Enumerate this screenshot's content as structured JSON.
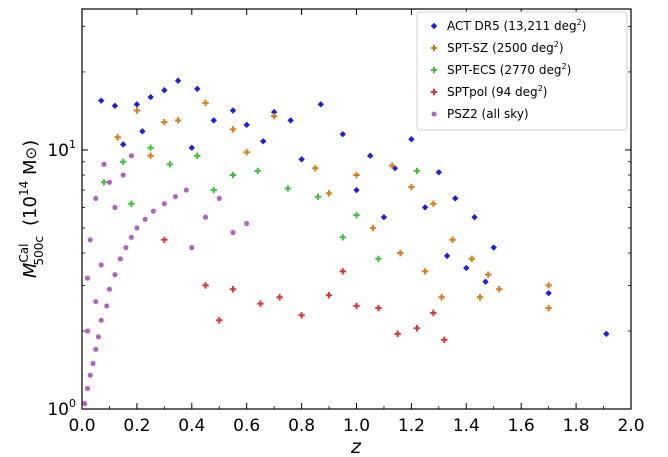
{
  "chart_data": {
    "type": "scatter",
    "xlabel": "z",
    "ylabel": {
      "symbol": "M",
      "superscript": "Cal",
      "subscript": "500c",
      "unit": "(10",
      "unit_exp": "14",
      "unit_tail": " M",
      "unit_close": ")"
    },
    "xlim": [
      0.0,
      2.0
    ],
    "ylim": [
      1.0,
      35.0
    ],
    "yscale": "log",
    "grid": false,
    "legend_position": "top-right",
    "x_ticks": [
      "0.0",
      "0.2",
      "0.4",
      "0.6",
      "0.8",
      "1.0",
      "1.2",
      "1.4",
      "1.6",
      "1.8",
      "2.0"
    ],
    "y_ticks": [
      {
        "value": 1,
        "base": "10",
        "exp": "0"
      },
      {
        "value": 10,
        "base": "10",
        "exp": "1"
      }
    ],
    "series": [
      {
        "name": "ACT DR5 (13,211 deg",
        "sup": "2",
        "tail": ")",
        "color": "#1f1fe0",
        "marker": "diamond",
        "points": [
          [
            0.07,
            15.5
          ],
          [
            0.12,
            14.8
          ],
          [
            0.2,
            15.0
          ],
          [
            0.25,
            16.0
          ],
          [
            0.3,
            17.0
          ],
          [
            0.35,
            18.5
          ],
          [
            0.42,
            17.2
          ],
          [
            0.48,
            13.0
          ],
          [
            0.55,
            14.2
          ],
          [
            0.6,
            12.5
          ],
          [
            0.7,
            14.0
          ],
          [
            0.76,
            13.0
          ],
          [
            0.87,
            15.0
          ],
          [
            0.95,
            11.5
          ],
          [
            1.05,
            9.5
          ],
          [
            1.14,
            8.5
          ],
          [
            1.2,
            11.0
          ],
          [
            1.3,
            8.2
          ],
          [
            1.36,
            6.5
          ],
          [
            1.43,
            5.5
          ],
          [
            1.5,
            4.2
          ],
          [
            1.7,
            2.8
          ],
          [
            1.91,
            1.95
          ],
          [
            0.15,
            10.5
          ],
          [
            0.22,
            11.8
          ],
          [
            0.4,
            10.2
          ],
          [
            0.66,
            10.8
          ],
          [
            0.8,
            9.2
          ],
          [
            1.0,
            7.0
          ],
          [
            1.1,
            5.5
          ],
          [
            1.25,
            6.0
          ],
          [
            1.33,
            3.9
          ],
          [
            1.4,
            3.5
          ],
          [
            1.47,
            3.1
          ]
        ]
      },
      {
        "name": "SPT-SZ (2500 deg",
        "sup": "2",
        "tail": ")",
        "color": "#e07a15",
        "marker": "plus",
        "points": [
          [
            0.13,
            11.2
          ],
          [
            0.2,
            14.2
          ],
          [
            0.3,
            12.8
          ],
          [
            0.35,
            13.0
          ],
          [
            0.45,
            15.2
          ],
          [
            0.55,
            12.0
          ],
          [
            0.7,
            13.5
          ],
          [
            0.85,
            8.5
          ],
          [
            1.0,
            8.0
          ],
          [
            1.13,
            8.7
          ],
          [
            1.2,
            7.2
          ],
          [
            1.28,
            6.2
          ],
          [
            1.35,
            4.5
          ],
          [
            1.42,
            3.8
          ],
          [
            1.48,
            3.3
          ],
          [
            1.52,
            2.9
          ],
          [
            1.7,
            2.45
          ],
          [
            1.7,
            3.0
          ],
          [
            0.25,
            9.5
          ],
          [
            0.6,
            9.8
          ],
          [
            0.9,
            6.8
          ],
          [
            1.06,
            5.0
          ],
          [
            1.16,
            4.0
          ],
          [
            1.25,
            3.4
          ],
          [
            1.31,
            2.7
          ],
          [
            1.45,
            2.7
          ]
        ]
      },
      {
        "name": "SPT-ECS (2770 deg",
        "sup": "2",
        "tail": ")",
        "color": "#3ac23a",
        "marker": "plus",
        "points": [
          [
            0.08,
            7.5
          ],
          [
            0.15,
            9.0
          ],
          [
            0.25,
            10.2
          ],
          [
            0.32,
            8.8
          ],
          [
            0.42,
            9.5
          ],
          [
            0.55,
            8.0
          ],
          [
            0.64,
            8.3
          ],
          [
            0.75,
            7.1
          ],
          [
            0.86,
            6.6
          ],
          [
            1.0,
            5.6
          ],
          [
            1.22,
            8.3
          ],
          [
            0.18,
            6.2
          ],
          [
            0.48,
            7.0
          ],
          [
            0.95,
            4.6
          ],
          [
            1.08,
            3.8
          ]
        ]
      },
      {
        "name": "SPTpol (94 deg",
        "sup": "2",
        "tail": ")",
        "color": "#e03131",
        "marker": "plus",
        "points": [
          [
            0.3,
            4.5
          ],
          [
            0.45,
            3.0
          ],
          [
            0.55,
            2.9
          ],
          [
            0.65,
            2.55
          ],
          [
            0.72,
            2.7
          ],
          [
            0.8,
            2.3
          ],
          [
            0.9,
            2.75
          ],
          [
            1.0,
            2.5
          ],
          [
            1.08,
            2.45
          ],
          [
            1.15,
            1.95
          ],
          [
            1.22,
            2.05
          ],
          [
            1.28,
            2.35
          ],
          [
            1.32,
            1.85
          ],
          [
            0.95,
            3.4
          ],
          [
            0.5,
            2.2
          ]
        ]
      },
      {
        "name": "PSZ2 (all sky)",
        "sup": "",
        "tail": "",
        "color": "#b45fc8",
        "marker": "circle",
        "points": [
          [
            0.01,
            1.05
          ],
          [
            0.02,
            1.2
          ],
          [
            0.03,
            1.35
          ],
          [
            0.04,
            1.5
          ],
          [
            0.05,
            1.7
          ],
          [
            0.06,
            1.9
          ],
          [
            0.07,
            2.2
          ],
          [
            0.09,
            2.5
          ],
          [
            0.1,
            2.9
          ],
          [
            0.12,
            3.3
          ],
          [
            0.14,
            3.8
          ],
          [
            0.16,
            4.2
          ],
          [
            0.18,
            4.6
          ],
          [
            0.2,
            5.0
          ],
          [
            0.23,
            5.4
          ],
          [
            0.26,
            5.8
          ],
          [
            0.3,
            6.2
          ],
          [
            0.34,
            6.6
          ],
          [
            0.38,
            7.0
          ],
          [
            0.4,
            4.2
          ],
          [
            0.45,
            5.5
          ],
          [
            0.5,
            6.5
          ],
          [
            0.55,
            4.8
          ],
          [
            0.6,
            5.2
          ],
          [
            0.02,
            3.2
          ],
          [
            0.03,
            4.5
          ],
          [
            0.05,
            6.5
          ],
          [
            0.08,
            8.8
          ],
          [
            0.1,
            7.5
          ],
          [
            0.12,
            6.0
          ],
          [
            0.15,
            8.0
          ],
          [
            0.18,
            9.5
          ],
          [
            0.05,
            2.6
          ],
          [
            0.07,
            3.6
          ],
          [
            0.02,
            2.0
          ]
        ]
      }
    ]
  }
}
